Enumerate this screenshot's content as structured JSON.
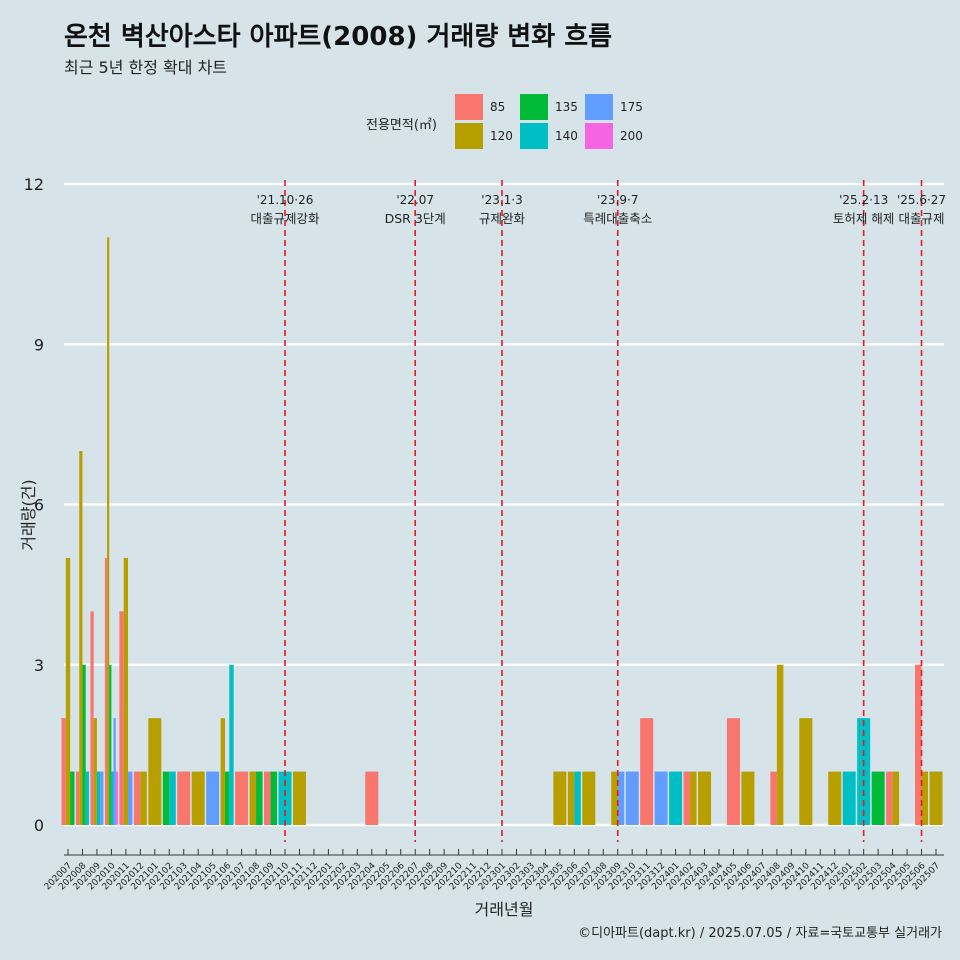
{
  "header": {
    "title": "온천 벽산아스타 아파트(2008) 거래량 변화 흐름",
    "subtitle": "최근 5년 한정 확대 차트"
  },
  "footer": {
    "caption": "©디아파트(dapt.kr) / 2025.07.05 / 자료=국토교통부 실거래가"
  },
  "legend": {
    "title": "전용면적(㎡)",
    "items": [
      {
        "label": "85",
        "color": "#F8766D"
      },
      {
        "label": "120",
        "color": "#B79F00"
      },
      {
        "label": "135",
        "color": "#00BA38"
      },
      {
        "label": "140",
        "color": "#00BFC4"
      },
      {
        "label": "175",
        "color": "#619CFF"
      },
      {
        "label": "200",
        "color": "#F564E3"
      }
    ]
  },
  "chart_data": {
    "type": "bar",
    "title": "온천 벽산아스타 아파트(2008) 거래량 변화 흐름",
    "xlabel": "거래년월",
    "ylabel": "거래량(건)",
    "ylim": [
      0,
      12
    ],
    "yticks": [
      0,
      3,
      6,
      9,
      12
    ],
    "categories": [
      "202007",
      "202008",
      "202009",
      "202010",
      "202011",
      "202012",
      "202101",
      "202102",
      "202103",
      "202104",
      "202105",
      "202106",
      "202107",
      "202108",
      "202109",
      "202110",
      "202111",
      "202112",
      "202201",
      "202202",
      "202203",
      "202204",
      "202205",
      "202206",
      "202207",
      "202208",
      "202209",
      "202210",
      "202211",
      "202212",
      "202301",
      "202302",
      "202303",
      "202304",
      "202305",
      "202306",
      "202307",
      "202308",
      "202309",
      "202310",
      "202311",
      "202312",
      "202401",
      "202402",
      "202403",
      "202404",
      "202405",
      "202406",
      "202407",
      "202408",
      "202409",
      "202410",
      "202411",
      "202412",
      "202501",
      "202502",
      "202503",
      "202504",
      "202505",
      "202506",
      "202507"
    ],
    "series": [
      {
        "name": "85",
        "color": "#F8766D",
        "values": [
          2,
          1,
          4,
          5,
          4,
          1,
          0,
          0,
          1,
          0,
          0,
          0,
          1,
          0,
          1,
          0,
          0,
          0,
          0,
          0,
          0,
          1,
          0,
          0,
          0,
          0,
          0,
          0,
          0,
          0,
          0,
          0,
          0,
          0,
          0,
          0,
          0,
          0,
          0,
          0,
          2,
          0,
          0,
          1,
          0,
          0,
          2,
          0,
          0,
          1,
          0,
          0,
          0,
          0,
          0,
          0,
          0,
          1,
          0,
          3,
          0
        ]
      },
      {
        "name": "120",
        "color": "#B79F00",
        "values": [
          5,
          7,
          2,
          11,
          5,
          1,
          2,
          0,
          0,
          1,
          0,
          2,
          0,
          1,
          0,
          0,
          1,
          0,
          0,
          0,
          0,
          0,
          0,
          0,
          0,
          0,
          0,
          0,
          0,
          0,
          0,
          0,
          0,
          0,
          1,
          1,
          1,
          0,
          1,
          0,
          0,
          0,
          0,
          1,
          1,
          0,
          0,
          1,
          0,
          3,
          0,
          2,
          0,
          1,
          0,
          0,
          0,
          1,
          0,
          1,
          1
        ]
      },
      {
        "name": "135",
        "color": "#00BA38",
        "values": [
          1,
          3,
          0,
          3,
          0,
          0,
          0,
          1,
          0,
          0,
          0,
          1,
          0,
          1,
          1,
          0,
          0,
          0,
          0,
          0,
          0,
          0,
          0,
          0,
          0,
          0,
          0,
          0,
          0,
          0,
          0,
          0,
          0,
          0,
          0,
          0,
          0,
          0,
          0,
          0,
          0,
          0,
          0,
          0,
          0,
          0,
          0,
          0,
          0,
          0,
          0,
          0,
          0,
          0,
          0,
          0,
          1,
          0,
          0,
          0,
          0
        ]
      },
      {
        "name": "140",
        "color": "#00BFC4",
        "values": [
          0,
          1,
          1,
          1,
          0,
          0,
          0,
          1,
          0,
          0,
          0,
          3,
          0,
          0,
          0,
          1,
          0,
          0,
          0,
          0,
          0,
          0,
          0,
          0,
          0,
          0,
          0,
          0,
          0,
          0,
          0,
          0,
          0,
          0,
          0,
          1,
          0,
          0,
          0,
          0,
          0,
          0,
          1,
          0,
          0,
          0,
          0,
          0,
          0,
          0,
          0,
          0,
          0,
          0,
          1,
          2,
          0,
          0,
          0,
          0,
          0
        ]
      },
      {
        "name": "175",
        "color": "#619CFF",
        "values": [
          0,
          0,
          1,
          2,
          1,
          0,
          0,
          0,
          0,
          0,
          1,
          0,
          0,
          0,
          0,
          0,
          0,
          0,
          0,
          0,
          0,
          0,
          0,
          0,
          0,
          0,
          0,
          0,
          0,
          0,
          0,
          0,
          0,
          0,
          0,
          0,
          0,
          0,
          1,
          1,
          0,
          1,
          0,
          0,
          0,
          0,
          0,
          0,
          0,
          0,
          0,
          0,
          0,
          0,
          0,
          0,
          0,
          0,
          0,
          0,
          0
        ]
      },
      {
        "name": "200",
        "color": "#F564E3",
        "values": [
          0,
          0,
          0,
          1,
          0,
          0,
          0,
          0,
          0,
          0,
          0,
          0,
          0,
          0,
          0,
          0,
          0,
          0,
          0,
          0,
          0,
          0,
          0,
          0,
          0,
          0,
          0,
          0,
          0,
          0,
          0,
          0,
          0,
          0,
          0,
          0,
          0,
          0,
          0,
          0,
          0,
          0,
          0,
          0,
          0,
          0,
          0,
          0,
          0,
          0,
          0,
          0,
          0,
          0,
          0,
          0,
          0,
          0,
          0,
          0,
          0
        ]
      }
    ],
    "annotations": [
      {
        "x": "202110",
        "date": "'21.10·26",
        "label": "대출규제강화"
      },
      {
        "x": "202207",
        "date": "'22.07",
        "label": "DSR 3단계"
      },
      {
        "x": "202301",
        "date": "'23.1·3",
        "label": "규제완화"
      },
      {
        "x": "202309",
        "date": "'23.9·7",
        "label": "특례대출축소"
      },
      {
        "x": "202502",
        "date": "'25.2·13",
        "label": "토허제 해제"
      },
      {
        "x": "202506",
        "date": "'25.6·27",
        "label": "대출규제"
      }
    ]
  }
}
